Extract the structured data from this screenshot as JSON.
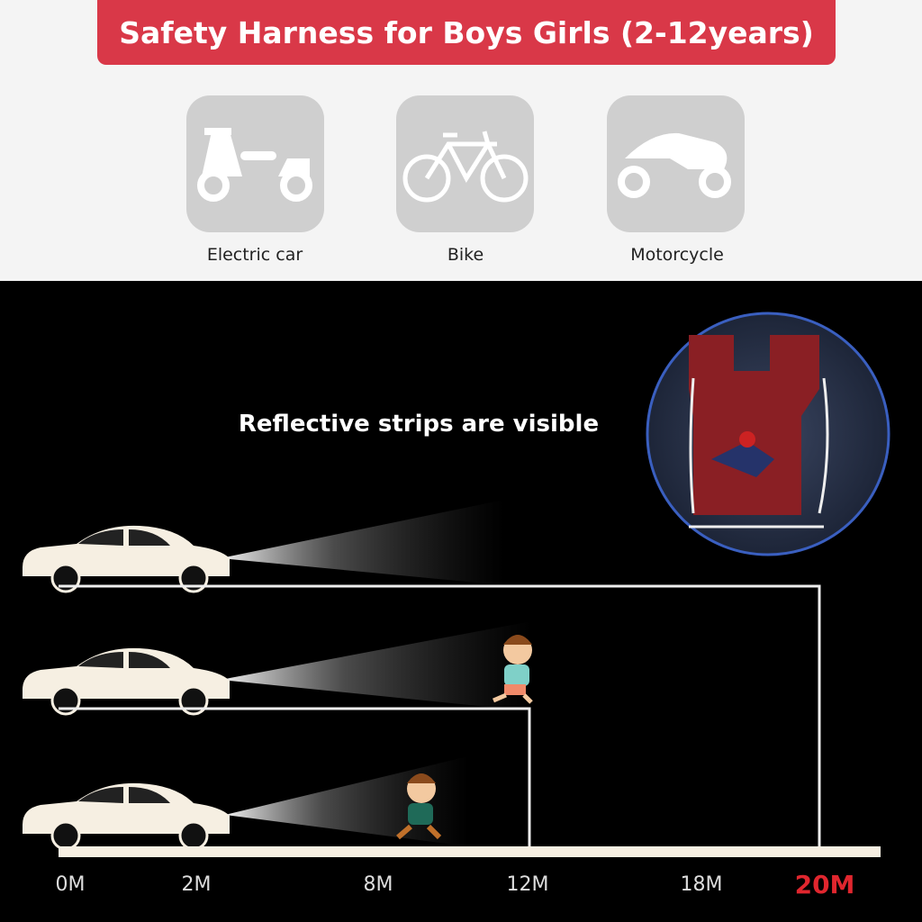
{
  "banner": {
    "title": "Safety Harness for Boys Girls (2-12years)"
  },
  "vehicles": [
    {
      "label": "Electric car",
      "icon": "scooter-icon"
    },
    {
      "label": "Bike",
      "icon": "bicycle-icon"
    },
    {
      "label": "Motorcycle",
      "icon": "motorcycle-icon"
    }
  ],
  "headline": "Reflective strips are visible",
  "distance_marks": [
    "0M",
    "2M",
    "8M",
    "12M",
    "18M",
    "20M"
  ],
  "highlight_mark": "20M",
  "colors": {
    "banner": "#d93848",
    "highlight": "#e0262e",
    "harness": "#8a1f24"
  }
}
